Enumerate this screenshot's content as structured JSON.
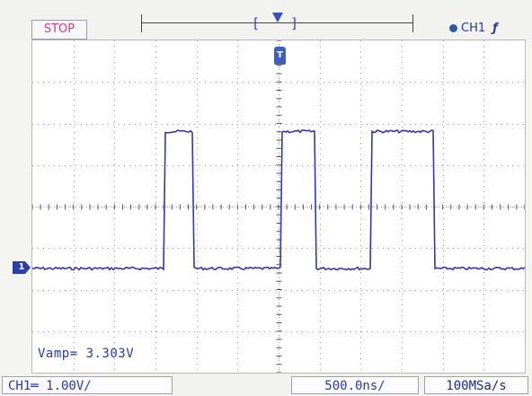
{
  "status": {
    "run_state": "STOP"
  },
  "trigger": {
    "channel": "CH1",
    "edge_symbol": "ƒ",
    "position_marker": "T",
    "memory_marker": "T"
  },
  "channel_marker": {
    "label": "1"
  },
  "measurement": {
    "text": "Vamp= 3.303V"
  },
  "bottom": {
    "channel_scale": "CH1═ 1.00V/",
    "timebase": "500.0ns/",
    "sample_rate": "100MSa/s"
  },
  "colors": {
    "trace": "#3535b5",
    "accent_text": "#2a3aa0",
    "stop_text": "#d4388f",
    "grid": "#9a9a9a"
  },
  "grid": {
    "divisions_x": 12,
    "divisions_y": 8
  },
  "waveform": {
    "baseline_level": 0.0,
    "high_level": 3.3,
    "pulses_div": [
      [
        3.24,
        3.92
      ],
      [
        6.08,
        6.88
      ],
      [
        8.24,
        9.8
      ]
    ]
  }
}
